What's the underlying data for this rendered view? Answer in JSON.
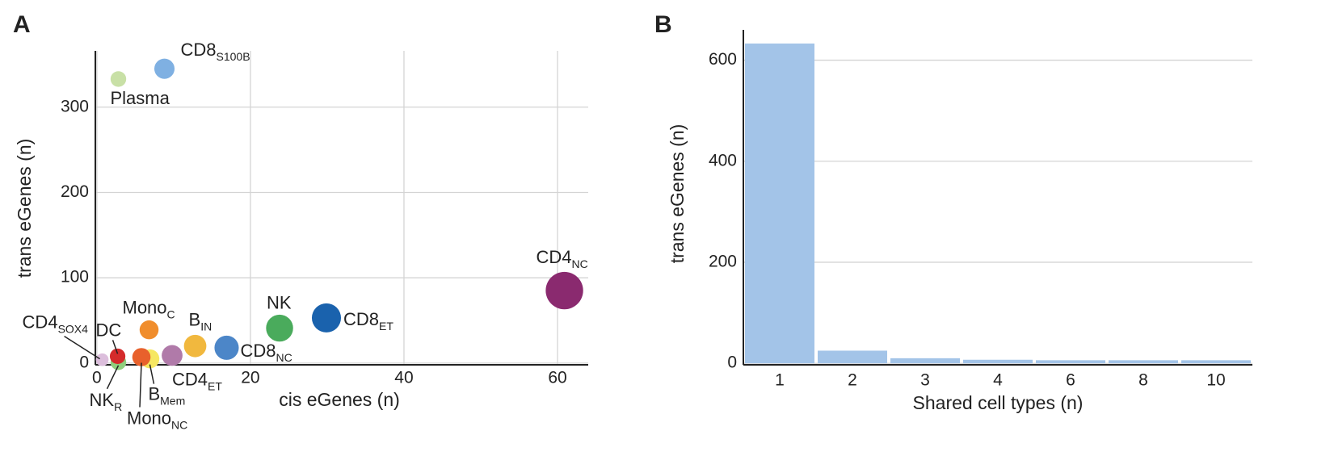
{
  "chart_data": [
    {
      "type": "scatter",
      "panel": "A",
      "xlabel": "cis eGenes (n)",
      "ylabel": "trans eGenes (n)",
      "labels": [
        "Plasma",
        "CD8",
        "CD4",
        "CD8",
        "NK",
        "CD8",
        "B",
        "CD4",
        "Mono",
        "B",
        "Mono",
        "DC",
        "NK",
        "CD4"
      ],
      "subs": [
        null,
        "S100B",
        "NC",
        "ET",
        null,
        "NC",
        "IN",
        "ET",
        "C",
        "Mem",
        "NC",
        null,
        "R",
        "SOX4"
      ],
      "x": [
        2.8,
        8.8,
        60.9,
        29.9,
        23.8,
        16.9,
        12.8,
        9.8,
        6.8,
        6.9,
        5.8,
        2.7,
        2.8,
        0.7
      ],
      "y": [
        333,
        345,
        85,
        53,
        41,
        18,
        20,
        9,
        39,
        5,
        7,
        8,
        1,
        4
      ],
      "colors": [
        "#c8e0a6",
        "#7fb0e2",
        "#8a2a6f",
        "#1a62ad",
        "#4aab5c",
        "#4c86c8",
        "#f1b83e",
        "#b07aa9",
        "#f08d2c",
        "#f6e762",
        "#e8612c",
        "#d42b2b",
        "#8fd07d",
        "#dcbedc"
      ],
      "xlim": [
        -0.2,
        64
      ],
      "ylim": [
        -2,
        366
      ],
      "xticks": [
        0,
        20,
        40,
        60
      ],
      "yticks": [
        0,
        100,
        200,
        300
      ],
      "grid": true
    },
    {
      "type": "bar",
      "panel": "B",
      "xlabel": "Shared cell types (n)",
      "ylabel": "trans eGenes (n)",
      "categories": [
        "1",
        "2",
        "3",
        "4",
        "6",
        "8",
        "10"
      ],
      "values": [
        633,
        25,
        10,
        7,
        6,
        6,
        6
      ],
      "color": "#a3c4e8",
      "ylim": [
        -3,
        660
      ],
      "yticks": [
        0,
        200,
        400,
        600
      ],
      "grid": true
    }
  ]
}
